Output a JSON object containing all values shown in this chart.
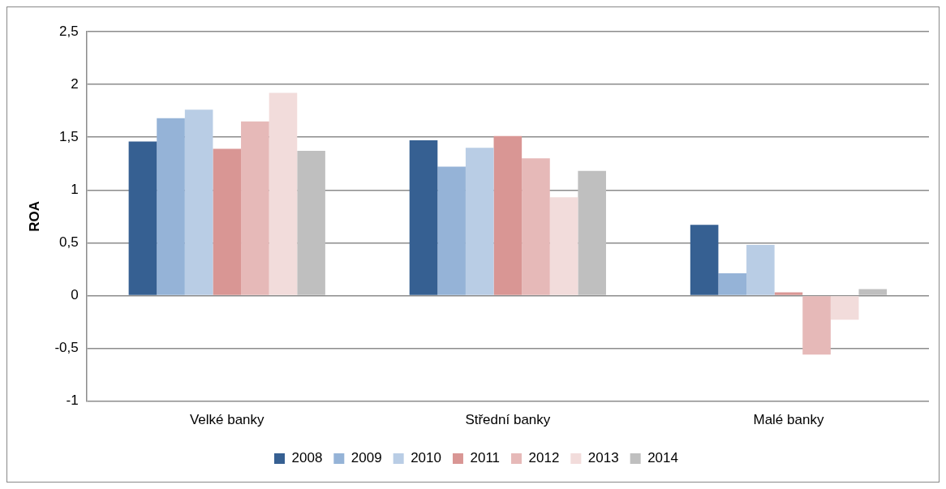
{
  "chart_data": {
    "type": "bar",
    "ylabel": "ROA",
    "categories": [
      "Velké banky",
      "Střední banky",
      "Malé banky"
    ],
    "series": [
      {
        "name": "2008",
        "color": "#366092",
        "values": [
          1.46,
          1.47,
          0.67
        ]
      },
      {
        "name": "2009",
        "color": "#95b3d7",
        "values": [
          1.68,
          1.22,
          0.21
        ]
      },
      {
        "name": "2010",
        "color": "#b9cde5",
        "values": [
          1.76,
          1.4,
          0.48
        ]
      },
      {
        "name": "2011",
        "color": "#d99694",
        "values": [
          1.39,
          1.51,
          0.03
        ]
      },
      {
        "name": "2012",
        "color": "#e6b9b8",
        "values": [
          1.65,
          1.3,
          -0.56
        ]
      },
      {
        "name": "2013",
        "color": "#f2dcdb",
        "values": [
          1.92,
          0.93,
          -0.23
        ]
      },
      {
        "name": "2014",
        "color": "#bfbfbf",
        "values": [
          1.37,
          1.18,
          0.06
        ]
      }
    ],
    "ylim": [
      -1,
      2.5
    ],
    "yticks": [
      {
        "value": -1,
        "label": "-1"
      },
      {
        "value": -0.5,
        "label": "-0,5"
      },
      {
        "value": 0,
        "label": "0"
      },
      {
        "value": 0.5,
        "label": "0,5"
      },
      {
        "value": 1,
        "label": "1"
      },
      {
        "value": 1.5,
        "label": "1,5"
      },
      {
        "value": 2,
        "label": "2"
      },
      {
        "value": 2.5,
        "label": "2,5"
      }
    ],
    "grid": "y",
    "legend": "bottom"
  }
}
